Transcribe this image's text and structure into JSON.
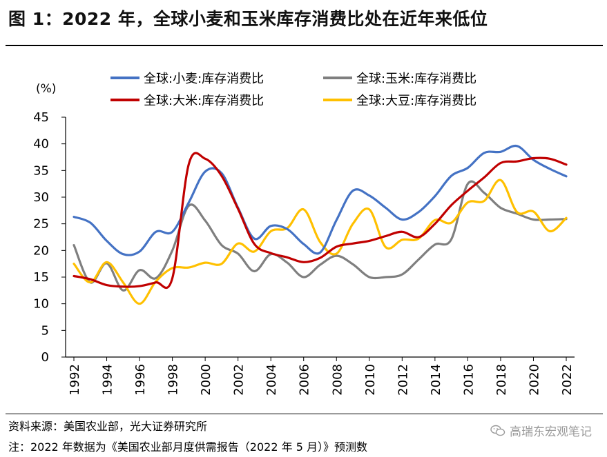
{
  "title": "图 1：2022 年，全球小麦和玉米库存消费比处在近年来低位",
  "source": "资料来源：美国农业部，光大证券研究所",
  "note": "注：2022 年数据为《美国农业部月度供需报告（2022 年 5 月）》预测数",
  "watermark": "高瑞东宏观笔记",
  "chart_data": {
    "type": "line",
    "unit_label": "(%)",
    "ylim": [
      0,
      45
    ],
    "yticks": [
      0,
      5,
      10,
      15,
      20,
      25,
      30,
      35,
      40,
      45
    ],
    "xlim": [
      1992,
      2022
    ],
    "xticks": [
      1992,
      1994,
      1996,
      1998,
      2000,
      2002,
      2004,
      2006,
      2008,
      2010,
      2012,
      2014,
      2016,
      2018,
      2020,
      2022
    ],
    "legend_position": "top",
    "grid": false,
    "series": [
      {
        "name": "全球:小麦:库存消费比",
        "color": "#4472c4",
        "x": [
          1992,
          1993,
          1994,
          1995,
          1996,
          1997,
          1998,
          1999,
          2000,
          2001,
          2002,
          2003,
          2004,
          2005,
          2006,
          2007,
          2008,
          2009,
          2010,
          2011,
          2012,
          2013,
          2014,
          2015,
          2016,
          2017,
          2018,
          2019,
          2020,
          2021,
          2022
        ],
        "y": [
          26.3,
          25.2,
          21.8,
          19.3,
          19.8,
          23.5,
          23.5,
          29.0,
          34.8,
          34.5,
          28.0,
          22.2,
          24.6,
          24.0,
          21.2,
          19.6,
          25.7,
          31.2,
          30.3,
          28.0,
          25.8,
          27.2,
          30.2,
          34.0,
          35.5,
          38.3,
          38.5,
          39.6,
          37.0,
          35.3,
          33.9
        ]
      },
      {
        "name": "全球:玉米:库存消费比",
        "color": "#7f7f7f",
        "x": [
          1992,
          1993,
          1994,
          1995,
          1996,
          1997,
          1998,
          1999,
          2000,
          2001,
          2002,
          2003,
          2004,
          2005,
          2006,
          2007,
          2008,
          2009,
          2010,
          2011,
          2012,
          2013,
          2014,
          2015,
          2016,
          2017,
          2018,
          2019,
          2020,
          2021,
          2022
        ],
        "y": [
          21.0,
          14.0,
          17.6,
          12.5,
          16.3,
          14.8,
          20.0,
          28.4,
          25.6,
          21.0,
          19.4,
          16.1,
          19.3,
          17.7,
          15.0,
          17.3,
          19.0,
          17.4,
          15.0,
          15.0,
          15.5,
          18.3,
          21.1,
          22.1,
          32.5,
          30.8,
          28.0,
          26.9,
          25.8,
          25.8,
          25.9
        ]
      },
      {
        "name": "全球:大米:库存消费比",
        "color": "#c00000",
        "x": [
          1992,
          1993,
          1994,
          1995,
          1996,
          1997,
          1998,
          1999,
          2000,
          2001,
          2002,
          2003,
          2004,
          2005,
          2006,
          2007,
          2008,
          2009,
          2010,
          2011,
          2012,
          2013,
          2014,
          2015,
          2016,
          2017,
          2018,
          2019,
          2020,
          2021,
          2022
        ],
        "y": [
          15.2,
          14.6,
          13.5,
          13.2,
          13.3,
          14.0,
          14.8,
          36.2,
          37.2,
          34.0,
          27.8,
          21.2,
          19.5,
          18.7,
          17.8,
          18.6,
          20.7,
          21.3,
          21.8,
          22.7,
          23.5,
          22.5,
          25.0,
          28.5,
          31.2,
          33.7,
          36.4,
          36.7,
          37.3,
          37.2,
          36.1
        ]
      },
      {
        "name": "全球:大豆:库存消费比",
        "color": "#ffc000",
        "x": [
          1992,
          1993,
          1994,
          1995,
          1996,
          1997,
          1998,
          1999,
          2000,
          2001,
          2002,
          2003,
          2004,
          2005,
          2006,
          2007,
          2008,
          2009,
          2010,
          2011,
          2012,
          2013,
          2014,
          2015,
          2016,
          2017,
          2018,
          2019,
          2020,
          2021,
          2022
        ],
        "y": [
          17.5,
          14.0,
          17.8,
          14.0,
          10.0,
          14.2,
          16.7,
          16.8,
          17.7,
          17.5,
          21.3,
          19.8,
          23.6,
          24.2,
          27.7,
          21.6,
          19.4,
          25.0,
          27.7,
          20.6,
          22.0,
          22.2,
          25.7,
          25.2,
          29.0,
          29.3,
          33.2,
          27.2,
          27.3,
          23.6,
          26.1
        ]
      }
    ]
  }
}
